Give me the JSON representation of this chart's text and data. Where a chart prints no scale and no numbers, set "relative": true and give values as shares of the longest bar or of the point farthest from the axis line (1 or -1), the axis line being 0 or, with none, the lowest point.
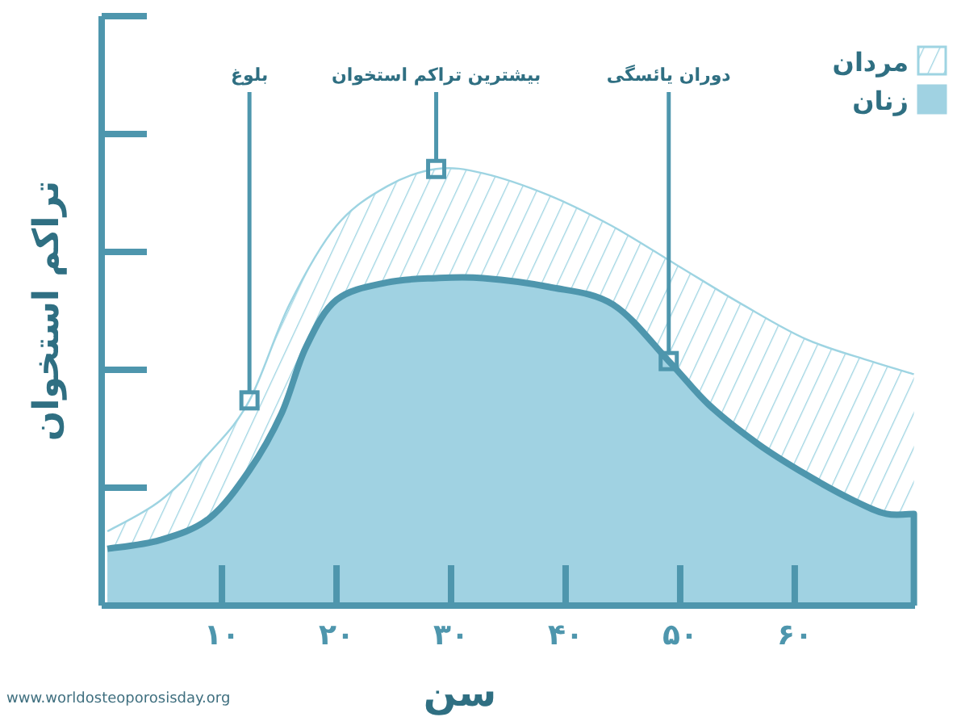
{
  "chart_data": {
    "type": "area",
    "relative": true,
    "xlabel": "سن",
    "ylabel": "تراکم استخوان",
    "legend": "top right",
    "xlim": [
      -0.5,
      70.5
    ],
    "xticks": [
      {
        "value": 10,
        "label": "۱۰"
      },
      {
        "value": 20,
        "label": "۲۰"
      },
      {
        "value": 30,
        "label": "۳۰"
      },
      {
        "value": 40,
        "label": "۴۰"
      },
      {
        "value": 50,
        "label": "۵۰"
      },
      {
        "value": 60,
        "label": "۶۰"
      }
    ],
    "series": [
      {
        "name": "مردان",
        "color": "#9ed4e2",
        "x": [
          0,
          4.6,
          8.9,
          12.4,
          15.9,
          20,
          24.4,
          28.7,
          32.8,
          38.5,
          44,
          49.7,
          55.4,
          61,
          66.6,
          70.4
        ],
        "values": [
          0.17,
          0.24,
          0.35,
          0.47,
          0.69,
          0.87,
          0.96,
          1.0,
          0.99,
          0.94,
          0.87,
          0.78,
          0.69,
          0.61,
          0.56,
          0.53
        ]
      },
      {
        "name": "زنان",
        "color": "#a0d2e2",
        "x": [
          0,
          4.6,
          8.9,
          12.4,
          15.2,
          17.3,
          20,
          24.4,
          28.7,
          32.8,
          38.5,
          44.1,
          49,
          52.5,
          56.8,
          61,
          65.2,
          68,
          70.4
        ],
        "values": [
          0.13,
          0.15,
          0.2,
          0.31,
          0.44,
          0.59,
          0.7,
          0.74,
          0.75,
          0.75,
          0.73,
          0.69,
          0.56,
          0.46,
          0.37,
          0.3,
          0.24,
          0.21,
          0.21
        ]
      }
    ],
    "annotations": [
      {
        "text": "بلوغ",
        "x": 12.4,
        "y": 0.47
      },
      {
        "text": "بیشترین تراکم استخوان",
        "x": 28.7,
        "y": 1.0
      },
      {
        "text": "دوران یائسگی",
        "x": 49,
        "y": 0.56
      },
      "www.worldosteoporosisday.org"
    ]
  }
}
